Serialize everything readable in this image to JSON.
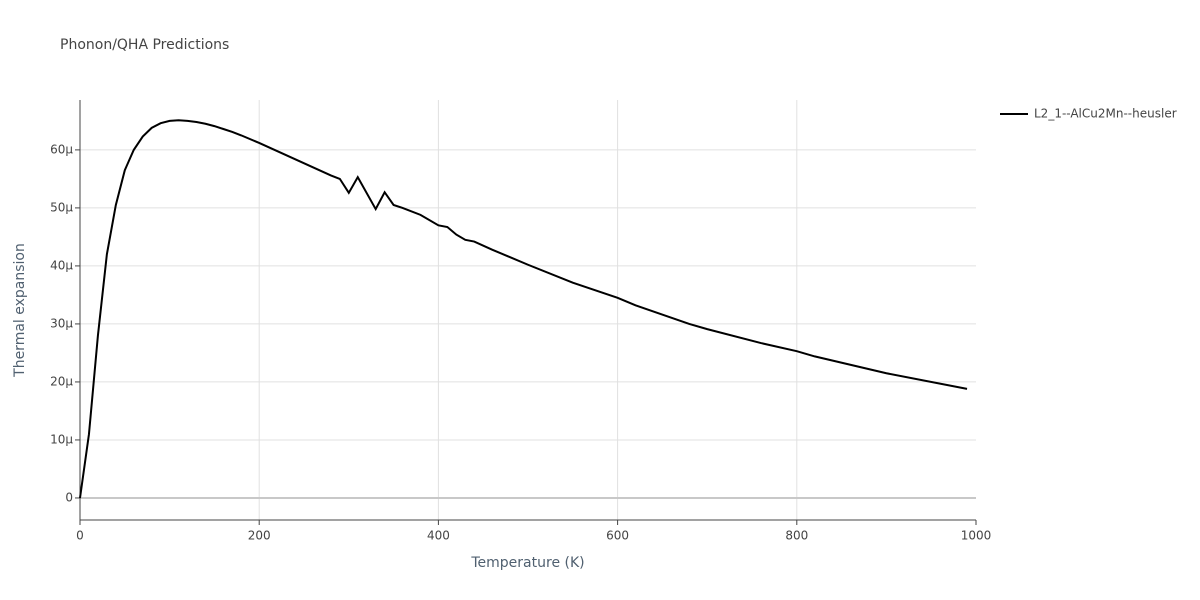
{
  "chart_data": {
    "type": "line",
    "title": "Phonon/QHA Predictions",
    "x_label": "Temperature (K)",
    "y_label": "Thermal expansion",
    "x": [
      0,
      10,
      20,
      30,
      40,
      50,
      60,
      70,
      80,
      90,
      100,
      110,
      120,
      130,
      140,
      150,
      160,
      170,
      180,
      200,
      220,
      240,
      260,
      280,
      290,
      300,
      310,
      330,
      340,
      350,
      360,
      380,
      400,
      410,
      420,
      430,
      440,
      460,
      480,
      500,
      550,
      600,
      620,
      680,
      700,
      760,
      800,
      820,
      900,
      990
    ],
    "series": [
      {
        "name": "L2_1--AlCu2Mn--heusler",
        "color": "#000000",
        "values": [
          0,
          1.1e-05,
          2.8e-05,
          4.2e-05,
          5.05e-05,
          5.65e-05,
          6e-05,
          6.23e-05,
          6.38e-05,
          6.46e-05,
          6.5e-05,
          6.51e-05,
          6.5e-05,
          6.48e-05,
          6.45e-05,
          6.41e-05,
          6.36e-05,
          6.31e-05,
          6.25e-05,
          6.12e-05,
          5.98e-05,
          5.84e-05,
          5.7e-05,
          5.56e-05,
          5.5e-05,
          5.26e-05,
          5.53e-05,
          4.98e-05,
          5.27e-05,
          5.05e-05,
          5e-05,
          4.88e-05,
          4.7e-05,
          4.67e-05,
          4.54e-05,
          4.45e-05,
          4.42e-05,
          4.28e-05,
          4.15e-05,
          4.02e-05,
          3.71e-05,
          3.45e-05,
          3.32e-05,
          3e-05,
          2.91e-05,
          2.67e-05,
          2.53e-05,
          2.44e-05,
          2.15e-05,
          1.88e-05
        ]
      }
    ],
    "xlim": [
      0,
      1000
    ],
    "xticks": [
      0,
      200,
      400,
      600,
      800,
      1000
    ],
    "ylim": [
      -3.8e-06,
      6.86e-05
    ],
    "yticks": [
      0,
      {
        "value": 1e-05,
        "label": "10µ"
      },
      {
        "value": 2e-05,
        "label": "20µ"
      },
      {
        "value": 3e-05,
        "label": "30µ"
      },
      {
        "value": 4e-05,
        "label": "40µ"
      },
      {
        "value": 5e-05,
        "label": "50µ"
      },
      {
        "value": 6e-05,
        "label": "60µ"
      }
    ],
    "grid": true,
    "legend": "right"
  }
}
